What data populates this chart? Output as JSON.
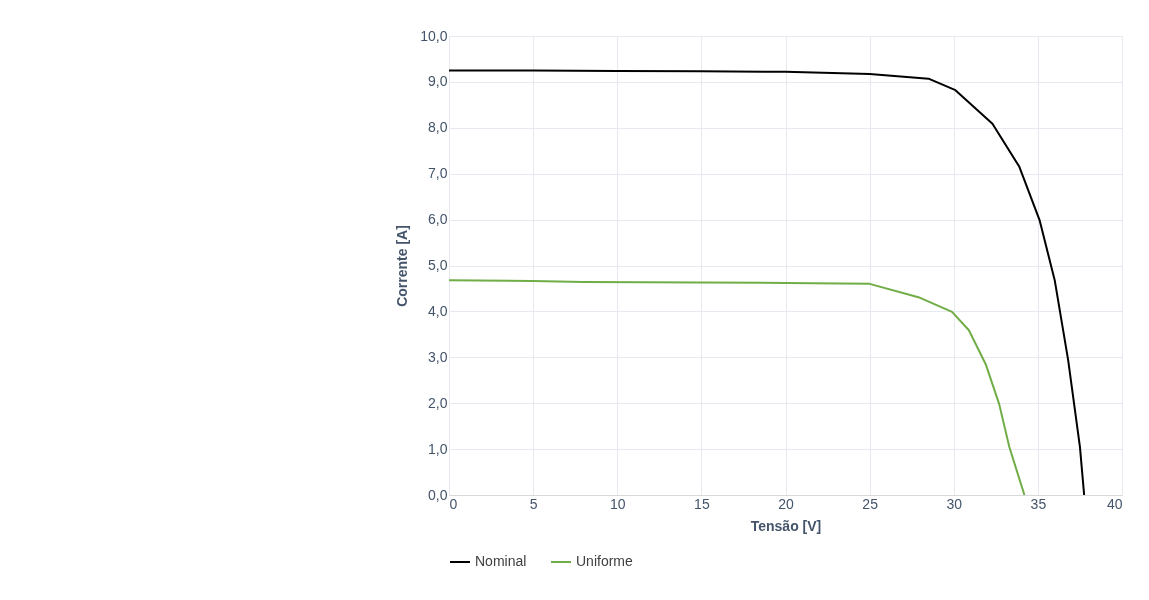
{
  "chart_data": {
    "type": "line",
    "xlabel": "Tensão [V]",
    "ylabel": "Corrente [A]",
    "series": [
      {
        "name": "Nominal",
        "color": "#000000",
        "x": [
          0,
          5,
          10,
          15,
          20,
          25,
          28.5,
          30.1,
          32.3,
          33.9,
          35.1,
          36.0,
          36.8,
          37.5,
          37.75
        ],
        "values": [
          9.25,
          9.25,
          9.24,
          9.23,
          9.22,
          9.17,
          9.07,
          8.82,
          8.09,
          7.15,
          5.99,
          4.68,
          2.94,
          1.05,
          0
        ]
      },
      {
        "name": "Uniforme",
        "color": "#70ad47",
        "x": [
          0,
          5,
          8,
          15,
          20,
          25,
          27.9,
          29.9,
          30.9,
          31.9,
          32.7,
          33.3,
          34.2
        ],
        "values": [
          4.68,
          4.66,
          4.64,
          4.63,
          4.62,
          4.6,
          4.31,
          3.99,
          3.59,
          2.85,
          1.98,
          1.05,
          0
        ]
      }
    ],
    "xlim": [
      0,
      40
    ],
    "xticks": [
      0,
      5,
      10,
      15,
      20,
      25,
      30,
      35,
      40
    ],
    "ylim": [
      0,
      10
    ],
    "yticks": [
      {
        "value": 0,
        "label": "0,0"
      },
      {
        "value": 1,
        "label": "1,0"
      },
      {
        "value": 2,
        "label": "2,0"
      },
      {
        "value": 3,
        "label": "3,0"
      },
      {
        "value": 4,
        "label": "4,0"
      },
      {
        "value": 5,
        "label": "5,0"
      },
      {
        "value": 6,
        "label": "6,0"
      },
      {
        "value": 7,
        "label": "7,0"
      },
      {
        "value": 8,
        "label": "8,0"
      },
      {
        "value": 9,
        "label": "9,0"
      },
      {
        "value": 10,
        "label": "10,0"
      }
    ],
    "grid": true,
    "legend": "bottom",
    "marker": "none",
    "line_style": "solid"
  }
}
